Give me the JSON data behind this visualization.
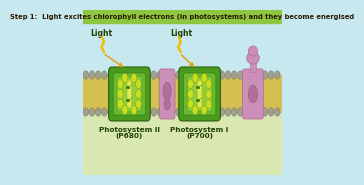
{
  "title": "Step 1:  Light excites chlorophyll electrons (in photosystems) and they become energised",
  "title_bg": "#8dc63f",
  "title_color": "#2a1a00",
  "bg_color": "#c8e8f0",
  "bg_bottom": "#d8e8b0",
  "membrane_yellow": "#d4c050",
  "membrane_border": "#a09030",
  "gray_head": "#a0a090",
  "gray_head_edge": "#707060",
  "ps_outer": "#4a9a20",
  "ps_mid": "#6aba30",
  "ps_inner": "#90d040",
  "ps_stripe": "#c8e040",
  "ps_stripe_glow": "#e8f060",
  "electron_ball": "#c8e020",
  "electron_ball_edge": "#80a010",
  "electron_text": "#206000",
  "pink_main": "#cc90b8",
  "pink_dark": "#b07098",
  "pink_light": "#e0b0d0",
  "light_text_color": "#204000",
  "zigzag_color": "#f0c000",
  "arrow_color": "#e0a000",
  "label_color": "#204000",
  "ps2_label_line1": "Photosystem II",
  "ps2_label_line2": "(P680)",
  "ps1_label_line1": "Photosystem I",
  "ps1_label_line2": "(P700)"
}
